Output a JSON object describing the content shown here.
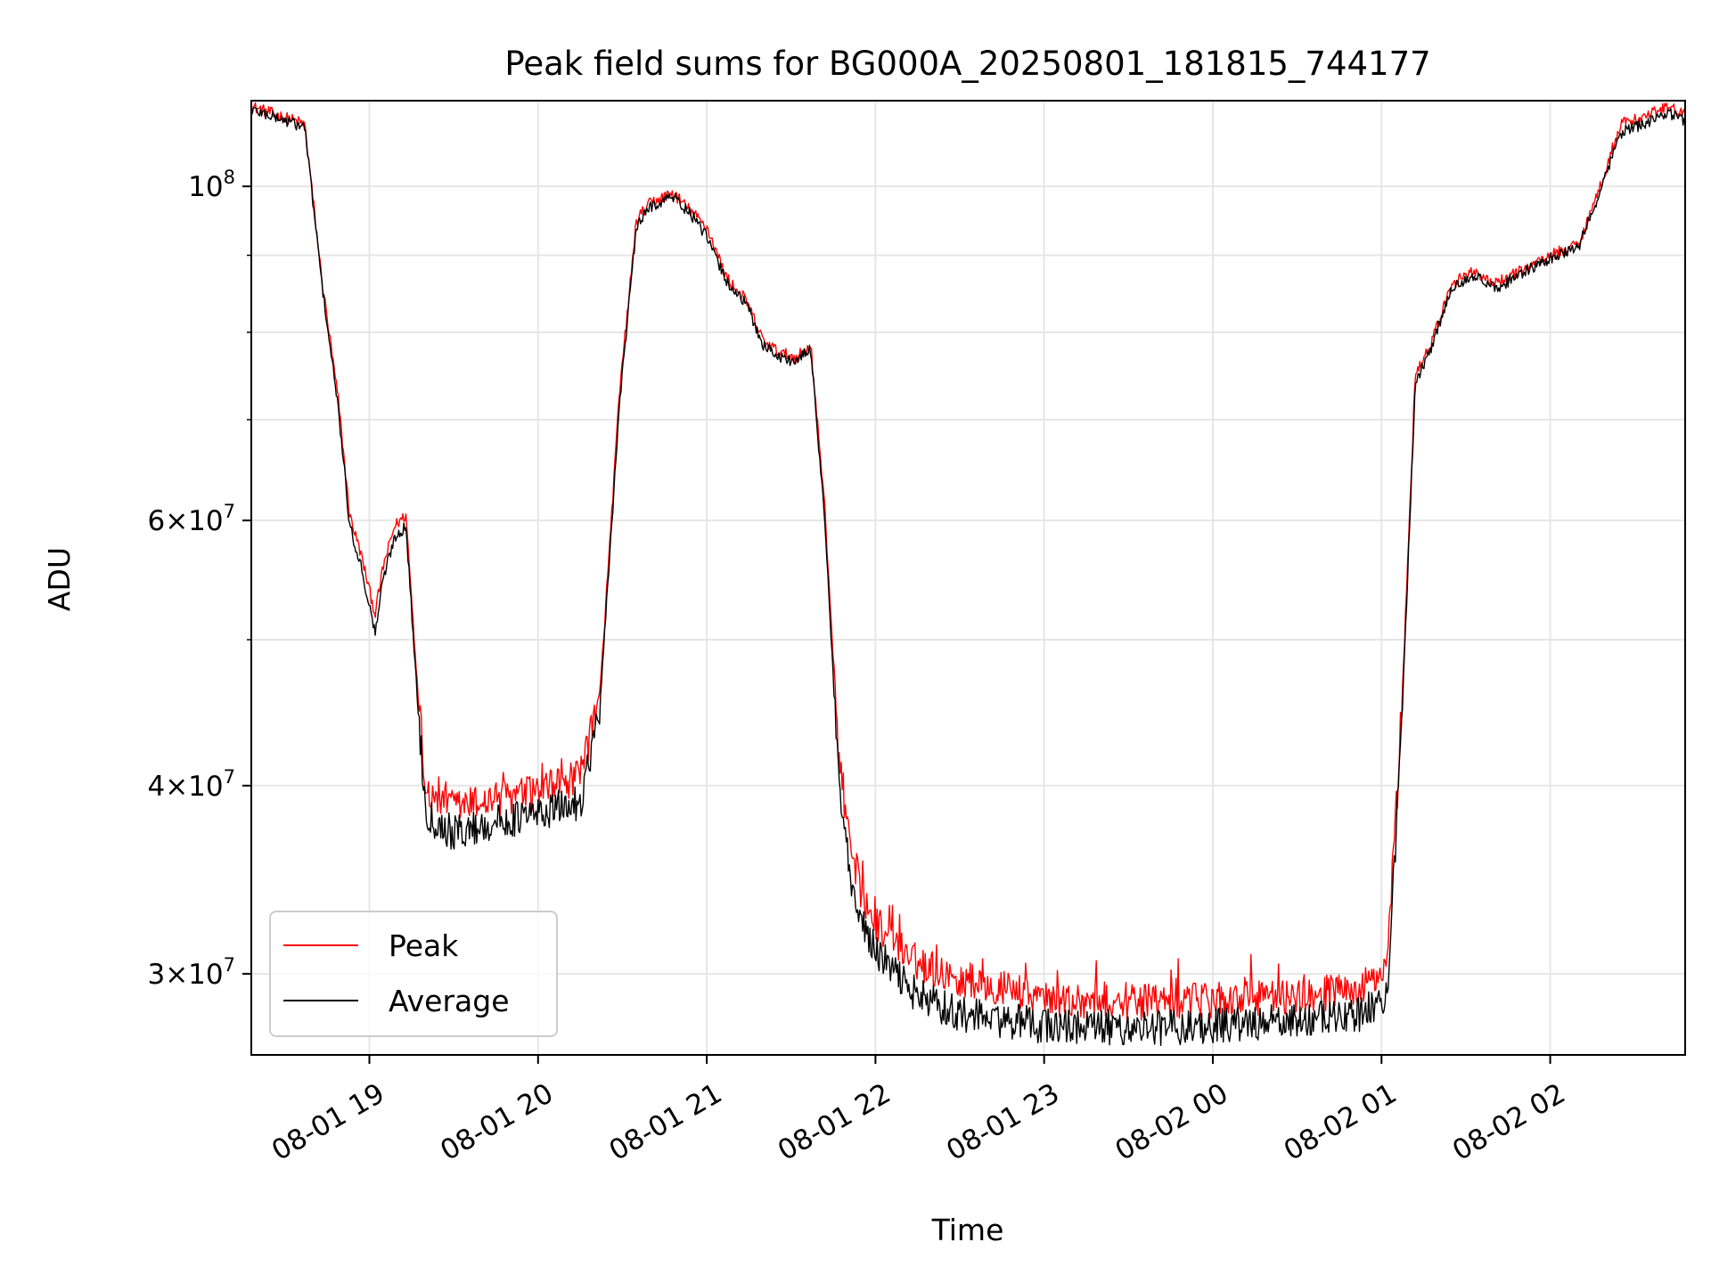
{
  "chart_data": {
    "type": "line",
    "title": "Peak field sums for BG000A_20250801_181815_744177",
    "xlabel": "Time",
    "ylabel": "ADU",
    "y_scale": "log",
    "xlim": [
      "2025-08-01 18:18",
      "2025-08-02 02:48"
    ],
    "ylim": [
      26500000,
      114000000
    ],
    "x_ticks": [
      {
        "t": "2025-08-01 19:00",
        "label": "08-01 19"
      },
      {
        "t": "2025-08-01 20:00",
        "label": "08-01 20"
      },
      {
        "t": "2025-08-01 21:00",
        "label": "08-01 21"
      },
      {
        "t": "2025-08-01 22:00",
        "label": "08-01 22"
      },
      {
        "t": "2025-08-01 23:00",
        "label": "08-01 23"
      },
      {
        "t": "2025-08-02 00:00",
        "label": "08-02 00"
      },
      {
        "t": "2025-08-02 01:00",
        "label": "08-02 01"
      },
      {
        "t": "2025-08-02 02:00",
        "label": "08-02 02"
      }
    ],
    "y_major_ticks": [
      {
        "v": 30000000,
        "base": "3×10",
        "exp": "7"
      },
      {
        "v": 40000000,
        "base": "4×10",
        "exp": "7"
      },
      {
        "v": 60000000,
        "base": "6×10",
        "exp": "7"
      },
      {
        "v": 100000000,
        "base": "10",
        "exp": "8"
      }
    ],
    "y_minor_ticks": [
      50000000,
      70000000,
      80000000,
      90000000
    ],
    "grid": true,
    "legend_position": "lower-left",
    "series": [
      {
        "name": "Peak",
        "color": "#ff0000",
        "x": [
          "2025-08-01 18:18",
          "2025-08-01 18:37",
          "2025-08-01 18:43",
          "2025-08-01 18:49",
          "2025-08-01 18:53",
          "2025-08-01 18:57",
          "2025-08-01 19:02",
          "2025-08-01 19:05",
          "2025-08-01 19:09",
          "2025-08-01 19:13",
          "2025-08-01 19:17",
          "2025-08-01 19:20",
          "2025-08-01 19:24",
          "2025-08-01 19:30",
          "2025-08-01 19:45",
          "2025-08-01 20:00",
          "2025-08-01 20:15",
          "2025-08-01 20:22",
          "2025-08-01 20:29",
          "2025-08-01 20:35",
          "2025-08-01 20:40",
          "2025-08-01 20:48",
          "2025-08-01 20:55",
          "2025-08-01 21:00",
          "2025-08-01 21:07",
          "2025-08-01 21:14",
          "2025-08-01 21:20",
          "2025-08-01 21:26",
          "2025-08-01 21:32",
          "2025-08-01 21:37",
          "2025-08-01 21:42",
          "2025-08-01 21:47",
          "2025-08-01 21:52",
          "2025-08-01 22:00",
          "2025-08-01 22:15",
          "2025-08-01 22:30",
          "2025-08-01 23:00",
          "2025-08-01 23:30",
          "2025-08-02 00:00",
          "2025-08-02 00:30",
          "2025-08-02 00:52",
          "2025-08-02 01:02",
          "2025-08-02 01:07",
          "2025-08-02 01:12",
          "2025-08-02 01:18",
          "2025-08-02 01:25",
          "2025-08-02 01:32",
          "2025-08-02 01:40",
          "2025-08-02 01:50",
          "2025-08-02 02:00",
          "2025-08-02 02:10",
          "2025-08-02 02:17",
          "2025-08-02 02:25",
          "2025-08-02 02:35",
          "2025-08-02 02:42",
          "2025-08-02 02:48"
        ],
        "values": [
          113000000,
          110000000,
          87000000,
          72000000,
          60500000,
          57000000,
          52000000,
          56000000,
          59500000,
          60500000,
          47000000,
          40000000,
          39000000,
          38700000,
          39200000,
          39600000,
          40500000,
          46000000,
          73000000,
          95000000,
          97500000,
          99000000,
          96000000,
          94000000,
          87000000,
          84000000,
          79000000,
          77500000,
          77000000,
          78500000,
          61000000,
          42000000,
          35000000,
          32500000,
          30500000,
          29800000,
          28900000,
          28700000,
          28800000,
          29000000,
          29300000,
          30200000,
          44000000,
          75000000,
          79000000,
          86000000,
          88000000,
          86000000,
          88000000,
          90000000,
          91500000,
          99000000,
          110000000,
          111500000,
          113000000,
          111500000
        ]
      },
      {
        "name": "Average",
        "color": "#000000",
        "x": [
          "2025-08-01 18:18",
          "2025-08-01 18:37",
          "2025-08-01 18:43",
          "2025-08-01 18:49",
          "2025-08-01 18:53",
          "2025-08-01 18:57",
          "2025-08-01 19:02",
          "2025-08-01 19:05",
          "2025-08-01 19:09",
          "2025-08-01 19:13",
          "2025-08-01 19:17",
          "2025-08-01 19:20",
          "2025-08-01 19:24",
          "2025-08-01 19:30",
          "2025-08-01 19:45",
          "2025-08-01 20:00",
          "2025-08-01 20:15",
          "2025-08-01 20:22",
          "2025-08-01 20:29",
          "2025-08-01 20:35",
          "2025-08-01 20:40",
          "2025-08-01 20:48",
          "2025-08-01 20:55",
          "2025-08-01 21:00",
          "2025-08-01 21:07",
          "2025-08-01 21:14",
          "2025-08-01 21:20",
          "2025-08-01 21:26",
          "2025-08-01 21:32",
          "2025-08-01 21:37",
          "2025-08-01 21:42",
          "2025-08-01 21:47",
          "2025-08-01 21:52",
          "2025-08-01 22:00",
          "2025-08-01 22:15",
          "2025-08-01 22:30",
          "2025-08-01 23:00",
          "2025-08-01 23:30",
          "2025-08-02 00:00",
          "2025-08-02 00:30",
          "2025-08-02 00:52",
          "2025-08-02 01:02",
          "2025-08-02 01:07",
          "2025-08-02 01:12",
          "2025-08-02 01:18",
          "2025-08-02 01:25",
          "2025-08-02 01:32",
          "2025-08-02 01:40",
          "2025-08-02 01:50",
          "2025-08-02 02:00",
          "2025-08-02 02:10",
          "2025-08-02 02:17",
          "2025-08-02 02:25",
          "2025-08-02 02:35",
          "2025-08-02 02:42",
          "2025-08-02 02:48"
        ],
        "values": [
          112500000,
          109500000,
          86500000,
          71000000,
          59500000,
          56000000,
          50500000,
          55000000,
          58500000,
          59500000,
          46000000,
          38500000,
          37800000,
          37200000,
          37800000,
          38300000,
          39000000,
          45000000,
          72000000,
          94000000,
          97000000,
          98500000,
          95500000,
          92500000,
          86500000,
          83500000,
          78500000,
          77000000,
          76500000,
          78000000,
          60000000,
          40000000,
          33500000,
          31000000,
          29000000,
          28200000,
          27700000,
          27600000,
          27700000,
          27900000,
          28200000,
          29000000,
          43000000,
          74000000,
          78500000,
          85500000,
          87500000,
          85500000,
          87500000,
          89500000,
          91000000,
          98500000,
          108500000,
          110500000,
          112000000,
          110500000
        ]
      }
    ]
  }
}
